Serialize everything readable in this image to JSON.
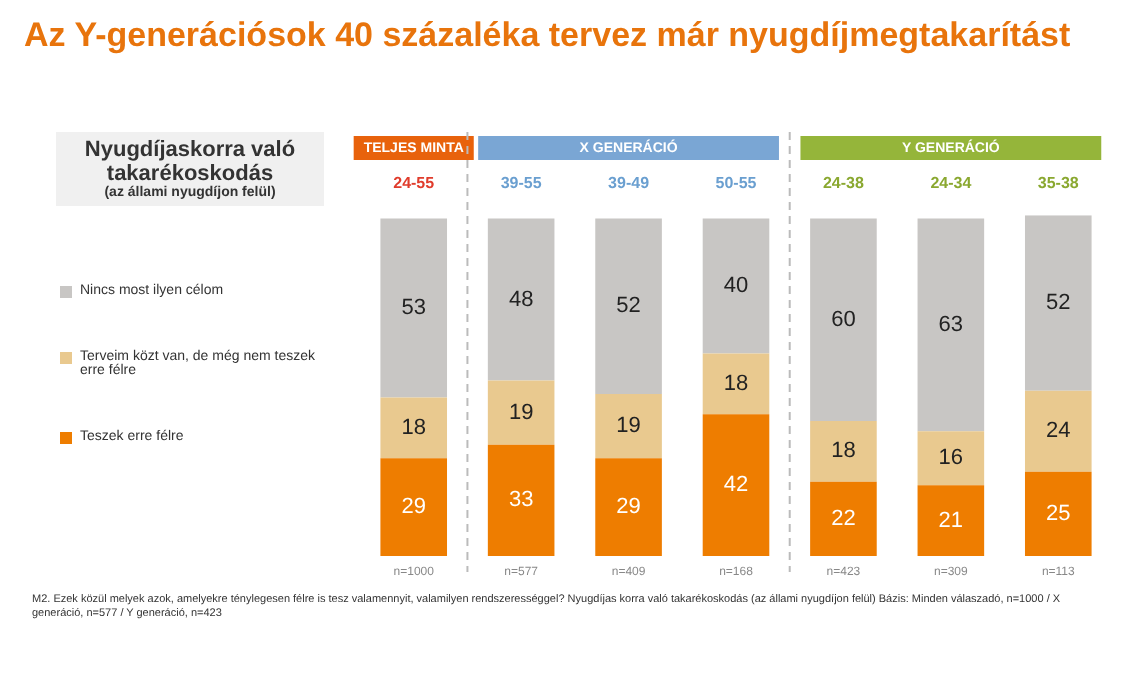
{
  "chart_data": {
    "type": "bar",
    "stacked": true,
    "title": "Az Y-generációsok 40 százaléka tervez már nyugdíjmegtakarítást",
    "subtitle": "Nyugdíjaskorra való takarékoskodás (az állami nyugdíjon felül)",
    "categories": [
      "24-55",
      "39-55",
      "39-49",
      "50-55",
      "24-38",
      "24-34",
      "35-38"
    ],
    "series": [
      {
        "name": "Teszek erre félre",
        "color": "#ee7d00",
        "values": [
          29,
          33,
          29,
          42,
          22,
          21,
          25
        ]
      },
      {
        "name": "Terveim közt van, de még nem teszek erre félre",
        "color": "#e9c98f",
        "values": [
          18,
          19,
          19,
          18,
          18,
          16,
          24
        ]
      },
      {
        "name": "Nincs most ilyen célom",
        "color": "#c8c6c4",
        "values": [
          53,
          48,
          52,
          40,
          60,
          63,
          52
        ]
      }
    ],
    "data_labels": true,
    "legend": "left",
    "tick_labels": "x",
    "annotations": [
      "TELJES MINTA",
      "X GENERÁCIÓ",
      "Y GENERÁCIÓ",
      "n=1000",
      "n=577",
      "n=409",
      "n=168",
      "n=423",
      "n=309",
      "n=113",
      "M2. Ezek közül melyek azok, amelyekre ténylegesen félre is tesz valamennyit, valamilyen rendszerességgel? Nyugdíjas korra való takarékoskodás (az állami nyugdíjon felül) Bázis: Minden válaszadó, n=1000 / X generáció, n=577 / Y generáció, n=423"
    ]
  }
}
